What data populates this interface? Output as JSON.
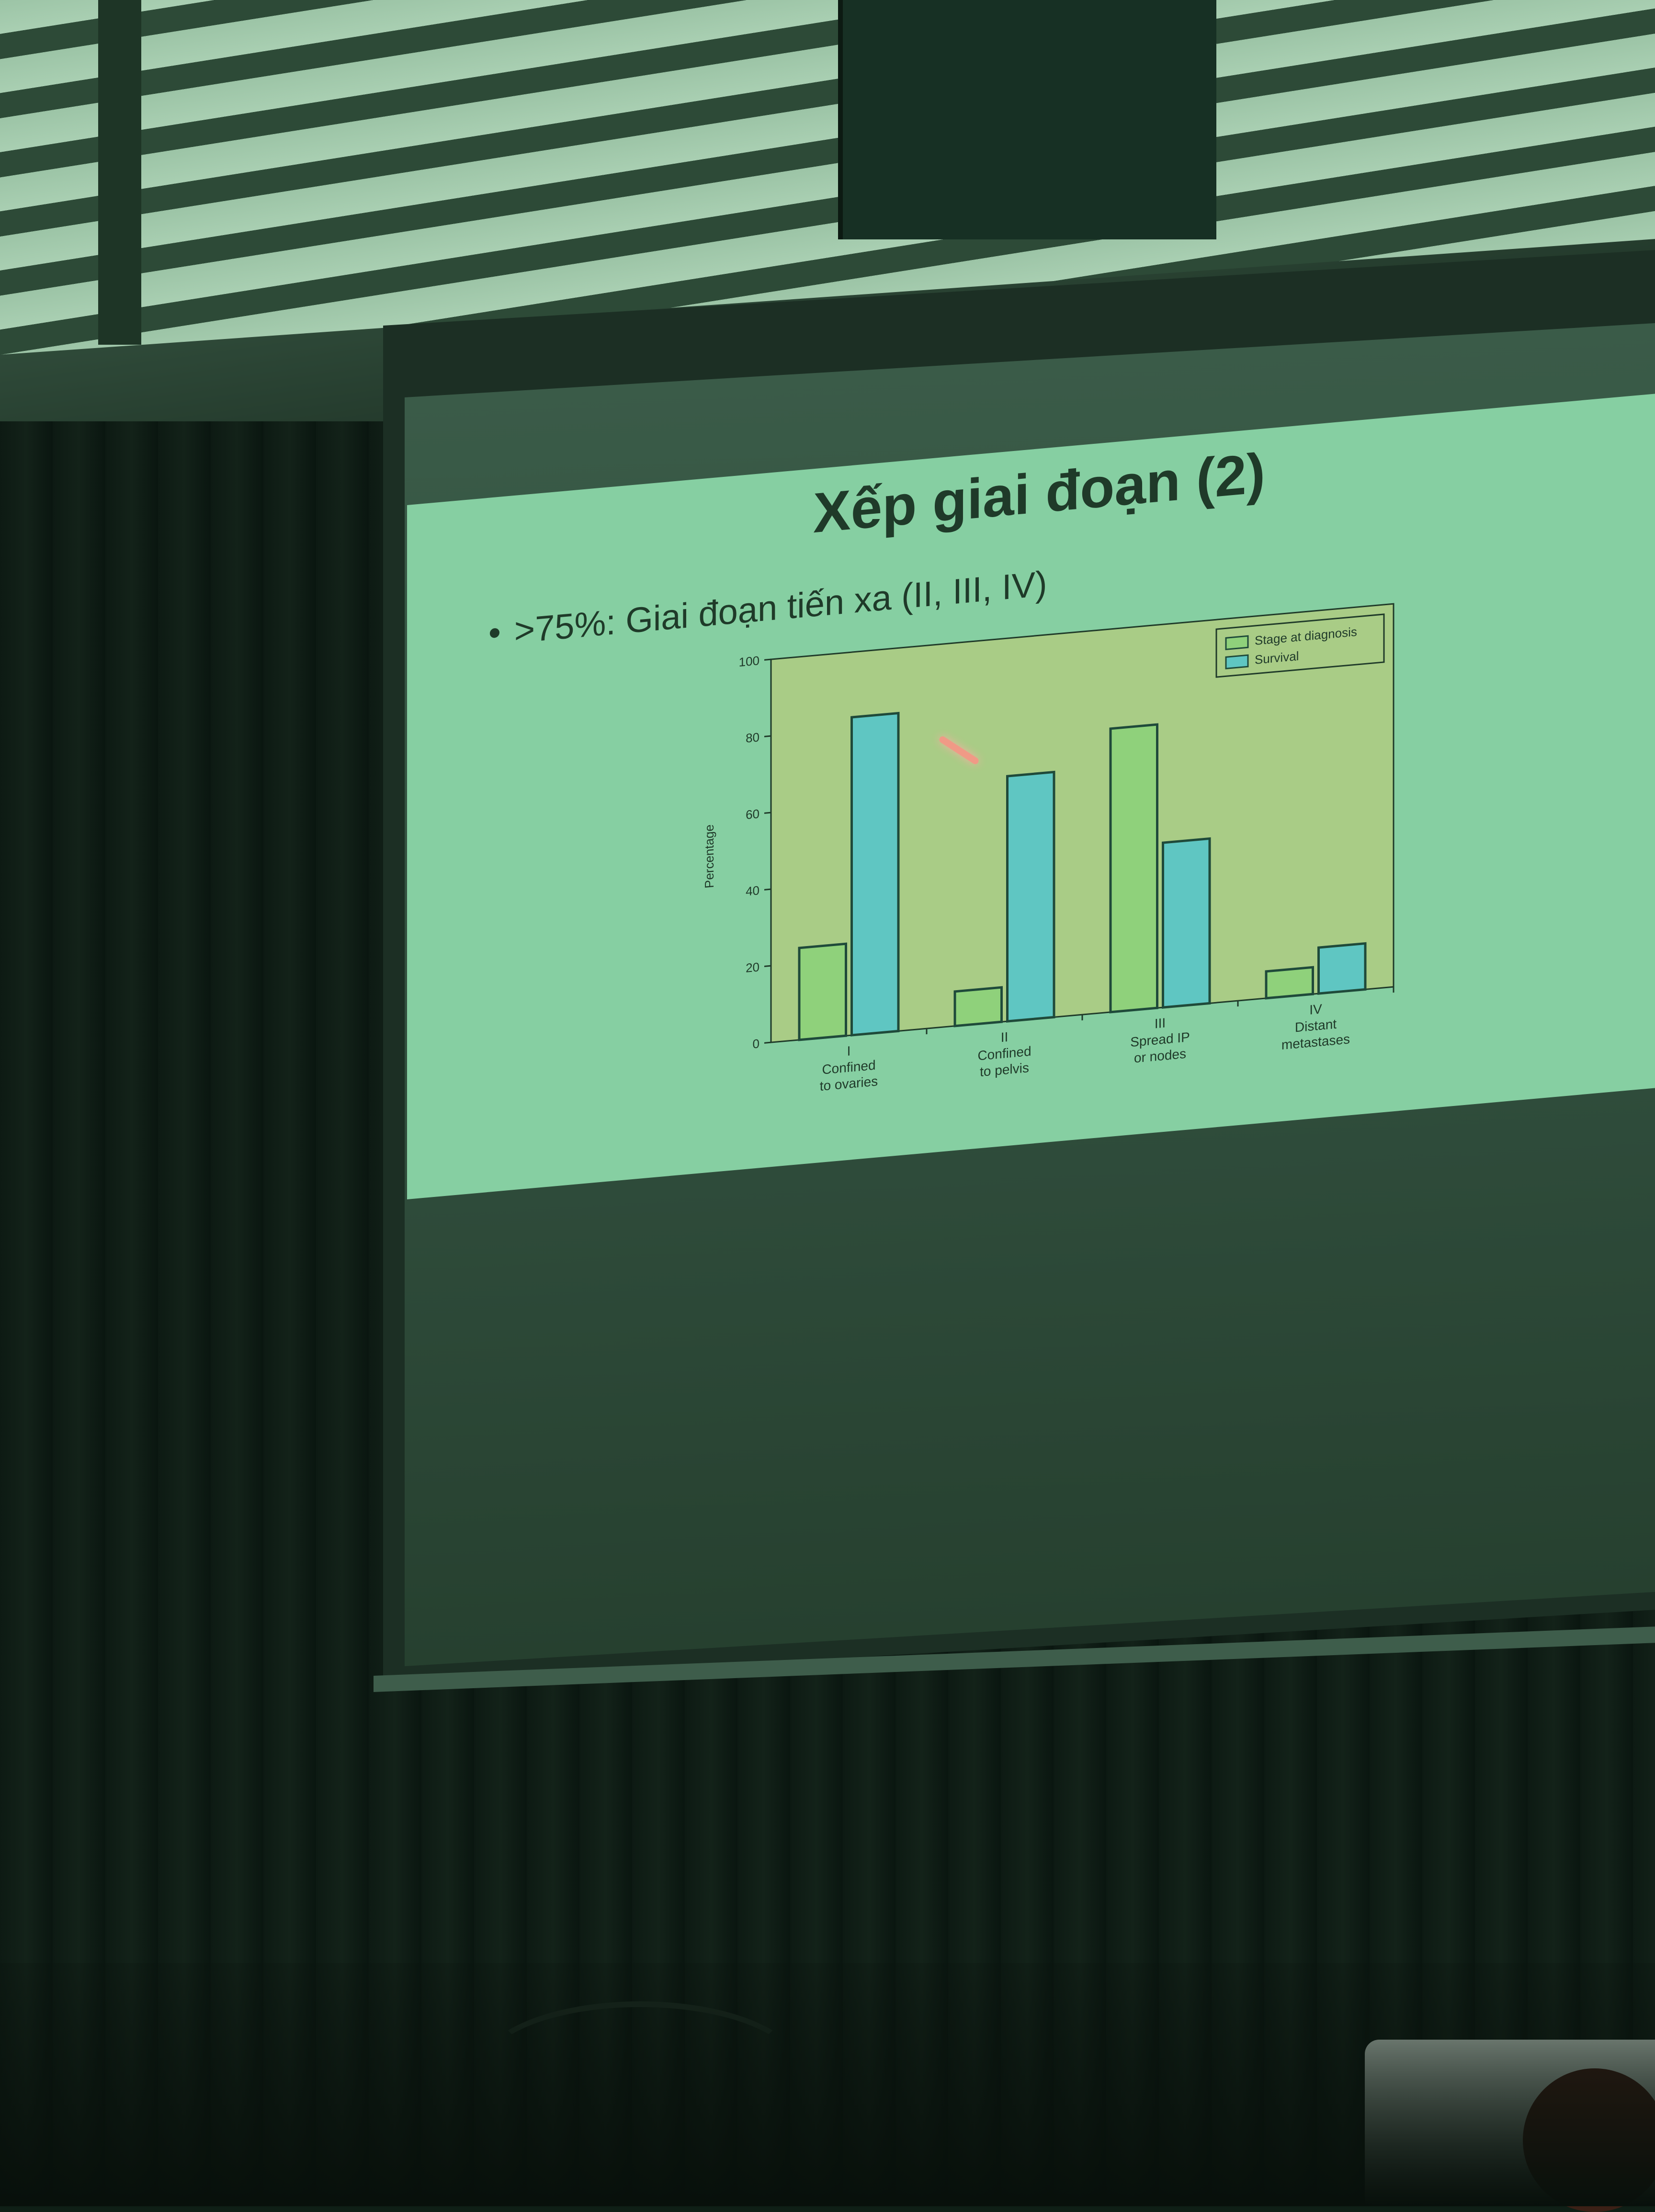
{
  "slide": {
    "title": "Xếp giai đoạn (2)",
    "bullet": ">75%: Giai đoạn tiến xa (II, III, IV)"
  },
  "colors": {
    "slide_background": "#86cfa2",
    "plot_background": "#a9cc86",
    "stage_bar": "#8fd17b",
    "survival_bar": "#5fc6c2",
    "text": "#1f3a29"
  },
  "chart_data": {
    "type": "bar",
    "title": "",
    "xlabel": "",
    "ylabel": "Percentage",
    "ylim": [
      0,
      100
    ],
    "yticks": [
      0,
      20,
      40,
      60,
      80,
      100
    ],
    "categories": [
      [
        "I",
        "Confined",
        "to ovaries"
      ],
      [
        "II",
        "Confined",
        "to pelvis"
      ],
      [
        "III",
        "Spread IP",
        "or nodes"
      ],
      [
        "IV",
        "Distant",
        "metastases"
      ]
    ],
    "series": [
      {
        "name": "Stage at diagnosis",
        "values": [
          24,
          9,
          74,
          7
        ]
      },
      {
        "name": "Survival",
        "values": [
          83,
          64,
          43,
          12
        ]
      }
    ],
    "legend_position": "top-right",
    "grid": false
  }
}
